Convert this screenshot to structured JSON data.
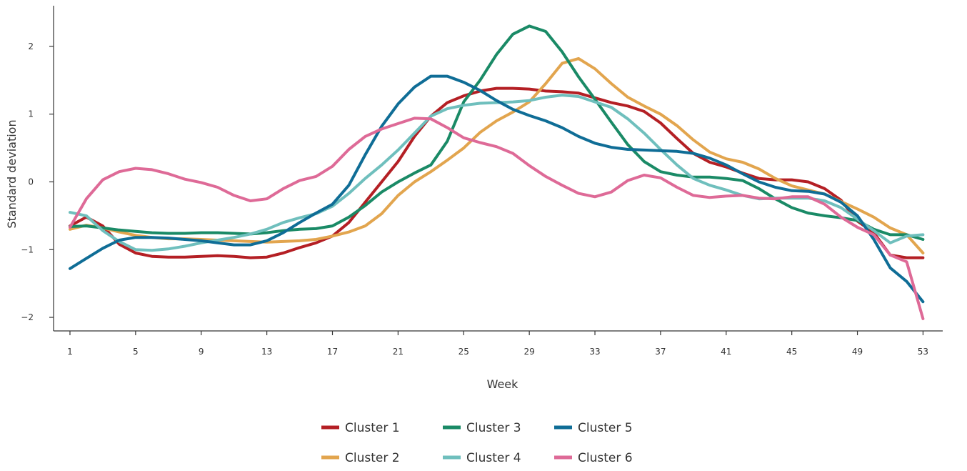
{
  "chart_data": {
    "type": "line",
    "xlabel": "Week",
    "ylabel": "Standard deviation",
    "x": [
      1,
      2,
      3,
      4,
      5,
      6,
      7,
      8,
      9,
      10,
      11,
      12,
      13,
      14,
      15,
      16,
      17,
      18,
      19,
      20,
      21,
      22,
      23,
      24,
      25,
      26,
      27,
      28,
      29,
      30,
      31,
      32,
      33,
      34,
      35,
      36,
      37,
      38,
      39,
      40,
      41,
      42,
      43,
      44,
      45,
      46,
      47,
      48,
      49,
      50,
      51,
      52,
      53
    ],
    "xticks": [
      1,
      5,
      9,
      13,
      17,
      21,
      25,
      29,
      33,
      37,
      41,
      45,
      49,
      53
    ],
    "xtick_labels": [
      "1",
      "5",
      "9",
      "13",
      "17",
      "21",
      "25",
      "29",
      "33",
      "37",
      "41",
      "45",
      "49",
      "53"
    ],
    "yticks": [
      -2,
      -1,
      0,
      1,
      2
    ],
    "ytick_labels": [
      "−2",
      "−1",
      "0",
      "1",
      "2"
    ],
    "xlim": [
      0,
      54.2
    ],
    "ylim": [
      -2.2,
      2.6
    ],
    "grid": false,
    "legend_position": "bottom-center",
    "series": [
      {
        "name": "Cluster 1",
        "color": "#b41f24",
        "values": [
          -0.65,
          -0.52,
          -0.65,
          -0.92,
          -1.05,
          -1.1,
          -1.11,
          -1.11,
          -1.1,
          -1.09,
          -1.1,
          -1.12,
          -1.11,
          -1.05,
          -0.97,
          -0.9,
          -0.8,
          -0.6,
          -0.3,
          0.0,
          0.3,
          0.67,
          0.97,
          1.17,
          1.27,
          1.34,
          1.38,
          1.38,
          1.37,
          1.34,
          1.33,
          1.31,
          1.24,
          1.17,
          1.12,
          1.04,
          0.87,
          0.64,
          0.42,
          0.29,
          0.22,
          0.13,
          0.05,
          0.03,
          0.03,
          0.0,
          -0.1,
          -0.27,
          -0.58,
          -0.75,
          -1.08,
          -1.12,
          -1.12
        ]
      },
      {
        "name": "Cluster 2",
        "color": "#e2a54e",
        "values": [
          -0.7,
          -0.64,
          -0.68,
          -0.74,
          -0.79,
          -0.82,
          -0.84,
          -0.84,
          -0.85,
          -0.86,
          -0.87,
          -0.88,
          -0.89,
          -0.88,
          -0.87,
          -0.85,
          -0.8,
          -0.74,
          -0.65,
          -0.47,
          -0.2,
          0.0,
          0.15,
          0.32,
          0.5,
          0.73,
          0.9,
          1.03,
          1.18,
          1.45,
          1.75,
          1.82,
          1.67,
          1.45,
          1.25,
          1.12,
          1.0,
          0.83,
          0.62,
          0.44,
          0.34,
          0.29,
          0.19,
          0.05,
          -0.06,
          -0.12,
          -0.18,
          -0.29,
          -0.4,
          -0.52,
          -0.68,
          -0.78,
          -1.05
        ]
      },
      {
        "name": "Cluster 3",
        "color": "#1a8a66",
        "values": [
          -0.66,
          -0.65,
          -0.68,
          -0.71,
          -0.73,
          -0.75,
          -0.76,
          -0.76,
          -0.75,
          -0.75,
          -0.76,
          -0.77,
          -0.75,
          -0.72,
          -0.7,
          -0.69,
          -0.65,
          -0.52,
          -0.35,
          -0.15,
          0.0,
          0.13,
          0.25,
          0.6,
          1.18,
          1.5,
          1.88,
          2.18,
          2.3,
          2.22,
          1.92,
          1.55,
          1.22,
          0.88,
          0.55,
          0.3,
          0.15,
          0.1,
          0.07,
          0.07,
          0.05,
          0.02,
          -0.1,
          -0.25,
          -0.38,
          -0.46,
          -0.5,
          -0.53,
          -0.57,
          -0.7,
          -0.78,
          -0.78,
          -0.85
        ]
      },
      {
        "name": "Cluster 4",
        "color": "#6fbfbd",
        "values": [
          -0.45,
          -0.5,
          -0.72,
          -0.88,
          -1.0,
          -1.01,
          -0.99,
          -0.95,
          -0.9,
          -0.86,
          -0.82,
          -0.77,
          -0.7,
          -0.6,
          -0.53,
          -0.47,
          -0.36,
          -0.17,
          0.05,
          0.25,
          0.47,
          0.72,
          0.97,
          1.08,
          1.13,
          1.16,
          1.17,
          1.18,
          1.2,
          1.25,
          1.28,
          1.26,
          1.18,
          1.1,
          0.93,
          0.72,
          0.48,
          0.25,
          0.05,
          -0.05,
          -0.12,
          -0.2,
          -0.25,
          -0.24,
          -0.24,
          -0.24,
          -0.28,
          -0.38,
          -0.55,
          -0.72,
          -0.9,
          -0.8,
          -0.78
        ]
      },
      {
        "name": "Cluster 5",
        "color": "#0f6d96",
        "values": [
          -1.28,
          -1.13,
          -0.98,
          -0.86,
          -0.82,
          -0.82,
          -0.83,
          -0.85,
          -0.87,
          -0.9,
          -0.93,
          -0.93,
          -0.87,
          -0.75,
          -0.6,
          -0.46,
          -0.33,
          -0.05,
          0.4,
          0.82,
          1.15,
          1.4,
          1.56,
          1.56,
          1.47,
          1.35,
          1.2,
          1.07,
          0.98,
          0.9,
          0.8,
          0.67,
          0.57,
          0.51,
          0.48,
          0.47,
          0.46,
          0.45,
          0.42,
          0.35,
          0.25,
          0.12,
          0.0,
          -0.08,
          -0.13,
          -0.14,
          -0.18,
          -0.3,
          -0.5,
          -0.85,
          -1.27,
          -1.47,
          -1.77
        ]
      },
      {
        "name": "Cluster 6",
        "color": "#de6a97",
        "values": [
          -0.67,
          -0.25,
          0.03,
          0.15,
          0.2,
          0.18,
          0.12,
          0.04,
          -0.01,
          -0.08,
          -0.2,
          -0.28,
          -0.25,
          -0.1,
          0.02,
          0.08,
          0.23,
          0.48,
          0.67,
          0.78,
          0.86,
          0.94,
          0.93,
          0.8,
          0.65,
          0.58,
          0.52,
          0.42,
          0.24,
          0.08,
          -0.05,
          -0.17,
          -0.22,
          -0.15,
          0.02,
          0.1,
          0.06,
          -0.08,
          -0.2,
          -0.23,
          -0.21,
          -0.2,
          -0.24,
          -0.25,
          -0.22,
          -0.22,
          -0.33,
          -0.52,
          -0.67,
          -0.78,
          -1.08,
          -1.18,
          -2.02
        ]
      }
    ]
  }
}
